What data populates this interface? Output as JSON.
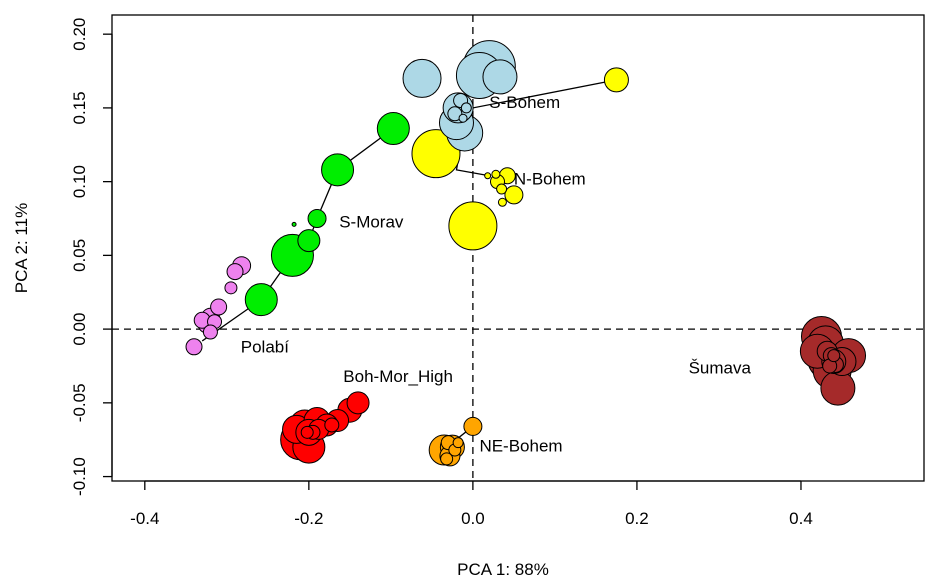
{
  "chart_data": {
    "type": "scatter",
    "xlabel": "PCA 1: 88%",
    "ylabel": "PCA 2: 11%",
    "xlim": [
      -0.44,
      0.55
    ],
    "ylim": [
      -0.103,
      0.213
    ],
    "x_ticks": [
      {
        "value": -0.4,
        "label": "-0.4"
      },
      {
        "value": -0.2,
        "label": "-0.2"
      },
      {
        "value": 0.0,
        "label": "0.0"
      },
      {
        "value": 0.2,
        "label": "0.2"
      },
      {
        "value": 0.4,
        "label": "0.4"
      }
    ],
    "y_ticks": [
      {
        "value": -0.1,
        "label": "-0.10"
      },
      {
        "value": -0.05,
        "label": "-0.05"
      },
      {
        "value": 0.0,
        "label": "0.00"
      },
      {
        "value": 0.05,
        "label": "0.05"
      },
      {
        "value": 0.1,
        "label": "0.10"
      },
      {
        "value": 0.15,
        "label": "0.15"
      },
      {
        "value": 0.2,
        "label": "0.20"
      }
    ],
    "reference_lines": {
      "x": 0,
      "y": 0,
      "style": "dashed"
    },
    "grid": false,
    "series": [
      {
        "name": "S-Bohem",
        "color": "#add8e6",
        "label": {
          "text": "S-Bohem",
          "x": 0.02,
          "y": 0.15
        },
        "points": [
          {
            "x": -0.062,
            "y": 0.17,
            "size": 19
          },
          {
            "x": 0.02,
            "y": 0.178,
            "size": 26
          },
          {
            "x": 0.008,
            "y": 0.172,
            "size": 23
          },
          {
            "x": 0.033,
            "y": 0.171,
            "size": 17
          },
          {
            "x": -0.018,
            "y": 0.15,
            "size": 15
          },
          {
            "x": -0.02,
            "y": 0.14,
            "size": 17
          },
          {
            "x": -0.01,
            "y": 0.133,
            "size": 18
          },
          {
            "x": -0.015,
            "y": 0.155,
            "size": 7
          },
          {
            "x": -0.022,
            "y": 0.146,
            "size": 7
          },
          {
            "x": -0.008,
            "y": 0.15,
            "size": 5
          },
          {
            "x": -0.012,
            "y": 0.143,
            "size": 4
          }
        ]
      },
      {
        "name": "N-Bohem",
        "color": "#ffff00",
        "label": {
          "text": "N-Bohem",
          "x": 0.05,
          "y": 0.098
        },
        "points": [
          {
            "x": 0.175,
            "y": 0.169,
            "size": 12
          },
          {
            "x": -0.045,
            "y": 0.119,
            "size": 24
          },
          {
            "x": 0.0,
            "y": 0.07,
            "size": 24
          },
          {
            "x": 0.05,
            "y": 0.091,
            "size": 9
          },
          {
            "x": 0.042,
            "y": 0.104,
            "size": 8
          },
          {
            "x": 0.03,
            "y": 0.1,
            "size": 7
          },
          {
            "x": 0.035,
            "y": 0.095,
            "size": 5
          },
          {
            "x": 0.036,
            "y": 0.086,
            "size": 4
          },
          {
            "x": 0.028,
            "y": 0.105,
            "size": 4
          },
          {
            "x": 0.018,
            "y": 0.104,
            "size": 3
          }
        ],
        "path": [
          [
            0.175,
            0.169
          ],
          [
            0.0,
            0.15
          ],
          [
            -0.01,
            0.14
          ],
          [
            -0.02,
            0.108
          ],
          [
            0.02,
            0.104
          ]
        ]
      },
      {
        "name": "S-Morav",
        "color": "#00ee00",
        "label": {
          "text": "S-Morav",
          "x": -0.163,
          "y": 0.069
        },
        "points": [
          {
            "x": -0.097,
            "y": 0.136,
            "size": 16
          },
          {
            "x": -0.165,
            "y": 0.108,
            "size": 16
          },
          {
            "x": -0.19,
            "y": 0.075,
            "size": 9
          },
          {
            "x": -0.2,
            "y": 0.06,
            "size": 11
          },
          {
            "x": -0.22,
            "y": 0.05,
            "size": 21
          },
          {
            "x": -0.258,
            "y": 0.02,
            "size": 16
          },
          {
            "x": -0.218,
            "y": 0.071,
            "size": 2
          }
        ],
        "path": [
          [
            -0.097,
            0.136
          ],
          [
            -0.165,
            0.108
          ],
          [
            -0.19,
            0.075
          ],
          [
            -0.2,
            0.06
          ],
          [
            -0.22,
            0.05
          ],
          [
            -0.258,
            0.02
          ],
          [
            -0.33,
            -0.008
          ]
        ]
      },
      {
        "name": "Polabí",
        "color": "#ee82ee",
        "label": {
          "text": "Polabí",
          "x": -0.283,
          "y": -0.016
        },
        "points": [
          {
            "x": -0.282,
            "y": 0.043,
            "size": 9
          },
          {
            "x": -0.29,
            "y": 0.039,
            "size": 8
          },
          {
            "x": -0.295,
            "y": 0.028,
            "size": 6
          },
          {
            "x": -0.31,
            "y": 0.015,
            "size": 8
          },
          {
            "x": -0.32,
            "y": 0.008,
            "size": 9
          },
          {
            "x": -0.325,
            "y": 0.003,
            "size": 8
          },
          {
            "x": -0.33,
            "y": 0.006,
            "size": 8
          },
          {
            "x": -0.315,
            "y": 0.005,
            "size": 7
          },
          {
            "x": -0.32,
            "y": -0.002,
            "size": 7
          },
          {
            "x": -0.34,
            "y": -0.012,
            "size": 8
          }
        ]
      },
      {
        "name": "Boh-Mor_High",
        "color": "#ff0000",
        "label": {
          "text": "Boh-Mor_High",
          "x": -0.158,
          "y": -0.036
        },
        "points": [
          {
            "x": -0.14,
            "y": -0.05,
            "size": 11
          },
          {
            "x": -0.15,
            "y": -0.055,
            "size": 12
          },
          {
            "x": -0.165,
            "y": -0.062,
            "size": 11
          },
          {
            "x": -0.178,
            "y": -0.065,
            "size": 11
          },
          {
            "x": -0.19,
            "y": -0.062,
            "size": 13
          },
          {
            "x": -0.205,
            "y": -0.065,
            "size": 15
          },
          {
            "x": -0.2,
            "y": -0.07,
            "size": 13
          },
          {
            "x": -0.215,
            "y": -0.068,
            "size": 14
          },
          {
            "x": -0.21,
            "y": -0.075,
            "size": 20
          },
          {
            "x": -0.2,
            "y": -0.08,
            "size": 16
          },
          {
            "x": -0.188,
            "y": -0.068,
            "size": 10
          },
          {
            "x": -0.172,
            "y": -0.065,
            "size": 7
          },
          {
            "x": -0.195,
            "y": -0.07,
            "size": 7
          },
          {
            "x": -0.202,
            "y": -0.07,
            "size": 6
          }
        ]
      },
      {
        "name": "NE-Bohem",
        "color": "#ffa500",
        "label": {
          "text": "NE-Bohem",
          "x": 0.008,
          "y": -0.083
        },
        "points": [
          {
            "x": -0.035,
            "y": -0.082,
            "size": 15
          },
          {
            "x": -0.025,
            "y": -0.08,
            "size": 12
          },
          {
            "x": -0.028,
            "y": -0.086,
            "size": 10
          },
          {
            "x": -0.03,
            "y": -0.077,
            "size": 7
          },
          {
            "x": -0.022,
            "y": -0.082,
            "size": 6
          },
          {
            "x": -0.018,
            "y": -0.077,
            "size": 5
          },
          {
            "x": -0.032,
            "y": -0.088,
            "size": 6
          }
        ],
        "path": [
          [
            -0.032,
            -0.08
          ],
          [
            0.0,
            -0.066
          ]
        ],
        "path_end_point": {
          "x": 0.0,
          "y": -0.066,
          "size": 9
        }
      },
      {
        "name": "Šumava",
        "color": "#a52a2a",
        "label": {
          "text": "Šumava",
          "x": 0.263,
          "y": -0.03
        },
        "points": [
          {
            "x": 0.425,
            "y": -0.005,
            "size": 20
          },
          {
            "x": 0.43,
            "y": -0.01,
            "size": 18
          },
          {
            "x": 0.435,
            "y": -0.02,
            "size": 22
          },
          {
            "x": 0.42,
            "y": -0.015,
            "size": 17
          },
          {
            "x": 0.438,
            "y": -0.028,
            "size": 19
          },
          {
            "x": 0.445,
            "y": -0.04,
            "size": 17
          },
          {
            "x": 0.458,
            "y": -0.018,
            "size": 17
          },
          {
            "x": 0.45,
            "y": -0.022,
            "size": 14
          },
          {
            "x": 0.44,
            "y": -0.022,
            "size": 12
          },
          {
            "x": 0.432,
            "y": -0.015,
            "size": 10
          },
          {
            "x": 0.437,
            "y": -0.018,
            "size": 8
          },
          {
            "x": 0.442,
            "y": -0.024,
            "size": 8
          },
          {
            "x": 0.435,
            "y": -0.025,
            "size": 7
          },
          {
            "x": 0.44,
            "y": -0.018,
            "size": 6
          }
        ]
      }
    ]
  }
}
